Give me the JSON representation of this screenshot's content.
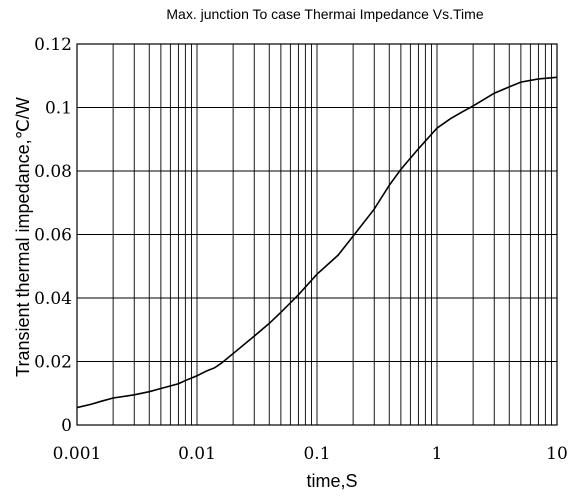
{
  "chart_data": {
    "type": "line",
    "title": "Max. junction To case Thermai Impedance Vs.Time",
    "xlabel": "time,S",
    "ylabel": "Transient thermal impedance,℃/W",
    "x_scale": "log",
    "xlim": [
      0.001,
      10
    ],
    "ylim": [
      0,
      0.12
    ],
    "grid": true,
    "x_tick_labels": [
      "0.001",
      "0.01",
      "0.1",
      "1",
      "10"
    ],
    "y_tick_labels": [
      "0",
      "0.02",
      "0.04",
      "0.06",
      "0.08",
      "0.1",
      "0.12"
    ],
    "x_tick_values": [
      0.001,
      0.01,
      0.1,
      1,
      10
    ],
    "y_tick_values": [
      0,
      0.02,
      0.04,
      0.06,
      0.08,
      0.1,
      0.12
    ],
    "series": [
      {
        "x": [
          0.001,
          0.0013,
          0.0016,
          0.002,
          0.003,
          0.004,
          0.005,
          0.007,
          0.008,
          0.01,
          0.012,
          0.014,
          0.016,
          0.02,
          0.03,
          0.04,
          0.05,
          0.07,
          0.1,
          0.15,
          0.2,
          0.3,
          0.4,
          0.5,
          0.7,
          1.0,
          1.3,
          1.6,
          2.0,
          3.0,
          4.0,
          5.0,
          7.0,
          10.0
        ],
        "y": [
          0.0055,
          0.0065,
          0.0075,
          0.0085,
          0.0095,
          0.0105,
          0.0115,
          0.013,
          0.014,
          0.0155,
          0.017,
          0.018,
          0.0195,
          0.0225,
          0.028,
          0.032,
          0.0355,
          0.041,
          0.0475,
          0.0535,
          0.0595,
          0.068,
          0.0755,
          0.0805,
          0.087,
          0.0935,
          0.0965,
          0.0985,
          0.1005,
          0.1045,
          0.1065,
          0.108,
          0.109,
          0.1095
        ]
      }
    ]
  }
}
